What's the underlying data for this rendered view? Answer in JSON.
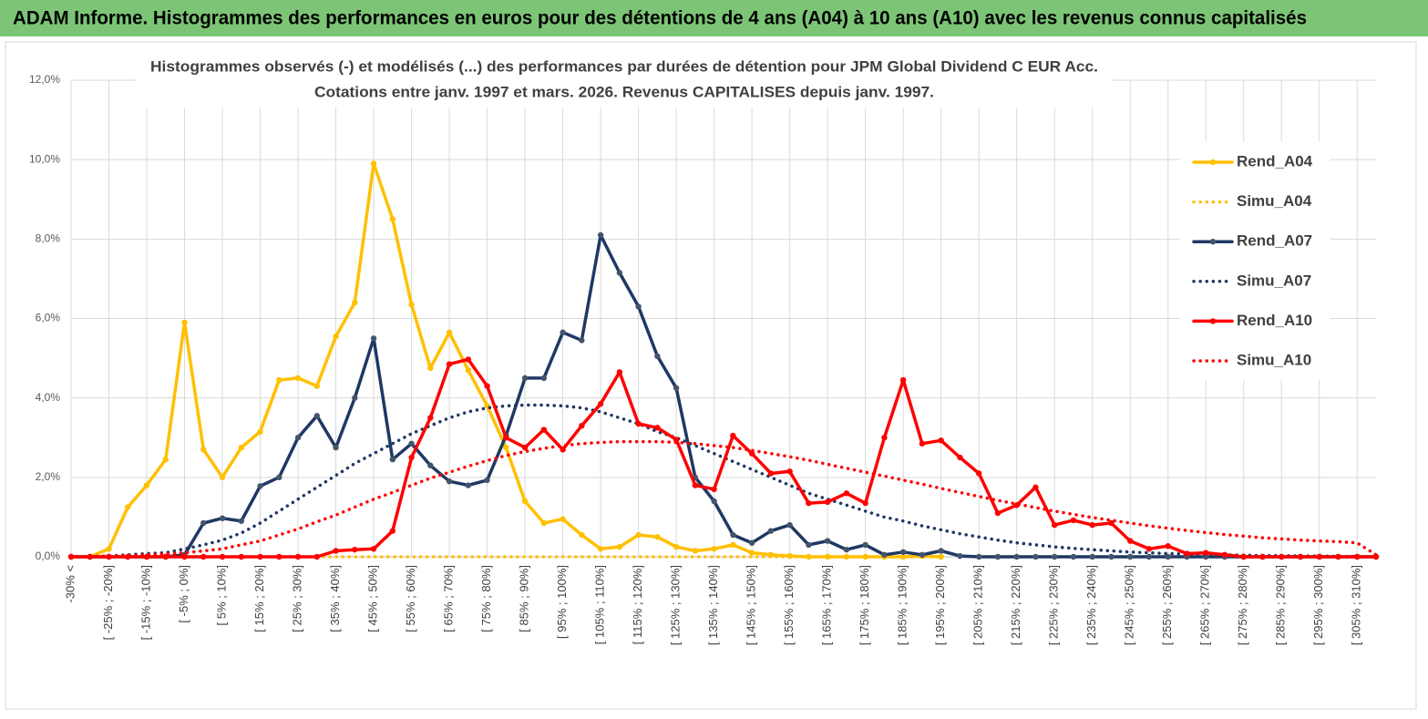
{
  "header": {
    "title": "ADAM Informe. Histogrammes des performances en euros pour des détentions de 4 ans (A04) à 10 ans (A10) avec les revenus connus capitalisés"
  },
  "chart_data": {
    "type": "line",
    "title": "Histogrammes observés (-) et modélisés (...) des performances par durées de détention pour JPM Global Dividend C EUR Acc.",
    "subtitle": "Cotations entre janv. 1997 et mars. 2026. Revenus CAPITALISES depuis janv. 1997.",
    "categories": [
      "-30% <",
      null,
      "[ -25% ; -20%]",
      null,
      "[ -15% ; -10%]",
      null,
      "[ -5% ; 0%]",
      null,
      "[ 5% ; 10%]",
      null,
      "[ 15% ; 20%]",
      null,
      "[ 25% ; 30%]",
      null,
      "[ 35% ; 40%]",
      null,
      "[ 45% ; 50%]",
      null,
      "[ 55% ; 60%]",
      null,
      "[ 65% ; 70%]",
      null,
      "[ 75% ; 80%]",
      null,
      "[ 85% ; 90%]",
      null,
      "[ 95% ; 100%]",
      null,
      "[ 105% ; 110%]",
      null,
      "[ 115% ; 120%]",
      null,
      "[ 125% ; 130%]",
      null,
      "[ 135% ; 140%]",
      null,
      "[ 145% ; 150%]",
      null,
      "[ 155% ; 160%]",
      null,
      "[ 165% ; 170%]",
      null,
      "[ 175% ; 180%]",
      null,
      "[ 185% ; 190%]",
      null,
      "[ 195% ; 200%]",
      null,
      "[ 205% ; 210%]",
      null,
      "[ 215% ; 220%]",
      null,
      "[ 225% ; 230%]",
      null,
      "[ 235% ; 240%]",
      null,
      "[ 245% ; 250%]",
      null,
      "[ 255% ; 260%]",
      null,
      "[ 265% ; 270%]",
      null,
      "[ 275% ; 280%]",
      null,
      "[ 285% ; 290%]",
      null,
      "[ 295% ; 300%]",
      null,
      "[ 305% ; 310%]",
      null
    ],
    "series": [
      {
        "name": "Rend_A04",
        "color": "#ffc000",
        "style": "solid",
        "markers": true,
        "values": [
          0,
          0,
          0.2,
          1.25,
          1.8,
          2.45,
          5.9,
          2.7,
          2.0,
          2.75,
          3.15,
          4.45,
          4.5,
          4.3,
          5.55,
          6.4,
          9.9,
          8.5,
          6.35,
          4.75,
          5.65,
          4.7,
          3.8,
          2.75,
          1.4,
          0.85,
          0.95,
          0.55,
          0.2,
          0.25,
          0.55,
          0.5,
          0.25,
          0.15,
          0.2,
          0.3,
          0.1,
          0.05,
          0.02,
          0,
          0,
          0,
          0,
          0,
          0,
          0.02,
          0,
          null,
          null,
          null,
          null,
          null,
          null,
          null,
          null,
          null,
          null,
          null,
          null,
          null,
          null,
          null,
          null,
          null,
          null,
          null,
          null,
          null,
          null,
          null
        ]
      },
      {
        "name": "Simu_A04",
        "color": "#ffc000",
        "style": "dotted",
        "markers": false,
        "values": [
          0,
          0,
          0,
          0,
          0,
          0,
          0,
          0,
          0,
          0,
          0,
          0,
          0,
          0,
          0,
          0,
          0,
          0,
          0,
          0,
          0,
          0,
          0,
          0,
          0,
          0,
          0,
          0,
          0,
          0,
          0,
          0,
          0,
          0,
          0,
          0,
          0,
          0,
          0,
          0,
          0,
          0,
          0,
          0,
          0,
          0,
          0,
          null,
          null,
          null,
          null,
          null,
          null,
          null,
          null,
          null,
          null,
          null,
          null,
          null,
          null,
          null,
          null,
          null,
          null,
          null,
          null,
          null,
          null,
          null
        ]
      },
      {
        "name": "Rend_A07",
        "color": "#1f3864",
        "marker_color": "#44546a",
        "style": "solid",
        "markers": true,
        "values": [
          0,
          0,
          0,
          0,
          0,
          0,
          0.05,
          0.85,
          0.97,
          0.9,
          1.78,
          2.0,
          3.0,
          3.55,
          2.75,
          4.0,
          5.5,
          2.45,
          2.85,
          2.3,
          1.9,
          1.8,
          1.93,
          3.05,
          4.5,
          4.5,
          5.65,
          5.45,
          8.1,
          7.15,
          6.3,
          5.05,
          4.25,
          2.0,
          1.4,
          0.55,
          0.35,
          0.65,
          0.8,
          0.3,
          0.4,
          0.18,
          0.3,
          0.05,
          0.12,
          0.05,
          0.15,
          0.02,
          0,
          0,
          0,
          0,
          0,
          0,
          0,
          0,
          0,
          0,
          0,
          0,
          0,
          0,
          0,
          0,
          0,
          0,
          0,
          0,
          0,
          0
        ]
      },
      {
        "name": "Simu_A07",
        "color": "#1f3864",
        "style": "dotted",
        "markers": false,
        "values": [
          0,
          0,
          0.02,
          0.05,
          0.08,
          0.1,
          0.2,
          0.3,
          0.42,
          0.6,
          0.85,
          1.15,
          1.45,
          1.75,
          2.05,
          2.35,
          2.6,
          2.85,
          3.1,
          3.3,
          3.5,
          3.65,
          3.75,
          3.8,
          3.82,
          3.82,
          3.8,
          3.75,
          3.65,
          3.5,
          3.35,
          3.15,
          3.0,
          2.8,
          2.6,
          2.4,
          2.2,
          2.0,
          1.8,
          1.6,
          1.45,
          1.3,
          1.15,
          1.0,
          0.9,
          0.78,
          0.68,
          0.58,
          0.5,
          0.42,
          0.35,
          0.3,
          0.25,
          0.21,
          0.18,
          0.15,
          0.12,
          0.1,
          0.08,
          0.07,
          0.06,
          0.05,
          0.04,
          0.03,
          0.03,
          0.02,
          0.02,
          0.01,
          0.01,
          0
        ]
      },
      {
        "name": "Rend_A10",
        "color": "#ff0000",
        "style": "solid",
        "markers": true,
        "values": [
          0,
          0,
          0,
          0,
          0,
          0,
          0,
          0,
          0,
          0,
          0,
          0,
          0,
          0,
          0.15,
          0.18,
          0.2,
          0.65,
          2.5,
          3.5,
          4.85,
          4.97,
          4.3,
          3.0,
          2.75,
          3.2,
          2.7,
          3.3,
          3.85,
          4.65,
          3.35,
          3.25,
          2.95,
          1.8,
          1.7,
          3.05,
          2.6,
          2.1,
          2.15,
          1.35,
          1.38,
          1.6,
          1.35,
          3.0,
          4.45,
          2.85,
          2.93,
          2.5,
          2.1,
          1.1,
          1.3,
          1.75,
          0.8,
          0.92,
          0.8,
          0.85,
          0.4,
          0.2,
          0.27,
          0.08,
          0.1,
          0.05,
          0,
          0,
          0,
          0,
          0,
          0,
          0,
          0
        ]
      },
      {
        "name": "Simu_A10",
        "color": "#ff0000",
        "style": "dotted",
        "markers": false,
        "values": [
          0,
          0.01,
          0.02,
          0.03,
          0.05,
          0.07,
          0.1,
          0.15,
          0.2,
          0.3,
          0.4,
          0.55,
          0.7,
          0.88,
          1.05,
          1.25,
          1.45,
          1.62,
          1.8,
          1.98,
          2.13,
          2.28,
          2.42,
          2.55,
          2.65,
          2.73,
          2.8,
          2.85,
          2.88,
          2.9,
          2.9,
          2.9,
          2.88,
          2.85,
          2.8,
          2.75,
          2.68,
          2.6,
          2.52,
          2.43,
          2.33,
          2.23,
          2.13,
          2.03,
          1.93,
          1.83,
          1.72,
          1.62,
          1.52,
          1.42,
          1.33,
          1.24,
          1.15,
          1.07,
          0.99,
          0.92,
          0.85,
          0.78,
          0.72,
          0.66,
          0.61,
          0.56,
          0.52,
          0.48,
          0.45,
          0.42,
          0.4,
          0.38,
          0.35,
          0.05
        ]
      }
    ],
    "ylim": [
      0,
      12
    ],
    "yticks": [
      {
        "value": 0,
        "label": "0,0%"
      },
      {
        "value": 2,
        "label": "2,0%"
      },
      {
        "value": 4,
        "label": "4,0%"
      },
      {
        "value": 6,
        "label": "6,0%"
      },
      {
        "value": 8,
        "label": "8,0%"
      },
      {
        "value": 10,
        "label": "10,0%"
      },
      {
        "value": 12,
        "label": "12,0%"
      }
    ],
    "grid": true,
    "legend": "right"
  }
}
